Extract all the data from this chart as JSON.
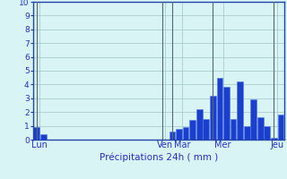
{
  "xlabel": "Précipitations 24h ( mm )",
  "ylim": [
    0,
    10
  ],
  "bar_color": "#1a3fcc",
  "bar_edge_color": "#5577ee",
  "background_color": "#d8f4f4",
  "grid_color": "#aacccc",
  "axis_color": "#2244aa",
  "text_color": "#2233bb",
  "tick_labels_color": "#2233bb",
  "values": [
    0.9,
    0.4,
    0,
    0,
    0,
    0,
    0,
    0,
    0,
    0,
    0,
    0,
    0,
    0,
    0,
    0,
    0,
    0,
    0,
    0,
    0.6,
    0.8,
    0.9,
    1.4,
    2.2,
    1.5,
    3.2,
    4.5,
    3.8,
    1.5,
    4.2,
    1.0,
    2.9,
    1.6,
    1.0,
    0.1,
    1.8
  ],
  "day_labels": [
    "Lun",
    "Ven",
    "Mar",
    "Mer",
    "Jeu"
  ],
  "day_positions": [
    1,
    19.5,
    22,
    28,
    36
  ],
  "vline_positions": [
    0.5,
    19.0,
    20.5,
    26.5,
    35.5
  ]
}
